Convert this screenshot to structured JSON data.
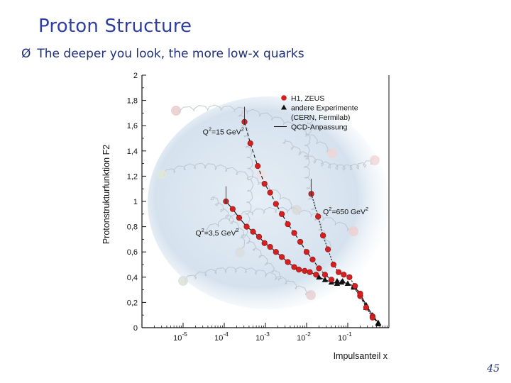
{
  "slide": {
    "title": "Proton Structure",
    "bullet_symbol": "Ø",
    "bullet_text": "The deeper you look, the more low-x quarks",
    "page_number": "45"
  },
  "chart_data": {
    "type": "scatter",
    "xlabel": "Impulsanteil x",
    "ylabel": "Protonstrukturfunktion F2",
    "x_scale": "log",
    "xlim": [
      1e-06,
      1
    ],
    "ylim": [
      0,
      2
    ],
    "x_ticks": [
      {
        "value": 1e-05,
        "base": "10",
        "exp": "-5"
      },
      {
        "value": 0.0001,
        "base": "10",
        "exp": "-4"
      },
      {
        "value": 0.001,
        "base": "10",
        "exp": "-3"
      },
      {
        "value": 0.01,
        "base": "10",
        "exp": "-2"
      },
      {
        "value": 0.1,
        "base": "10",
        "exp": "-1"
      }
    ],
    "y_ticks": [
      "0",
      "0,2",
      "0,4",
      "0,6",
      "0,8",
      "1",
      "1,2",
      "1,4",
      "1,6",
      "1,8",
      "2"
    ],
    "legend": [
      {
        "label": "H1, ZEUS",
        "marker": "circle",
        "color": "#d42020"
      },
      {
        "label": "andere Experimente",
        "marker": "triangle",
        "color": "#111111"
      },
      {
        "label": "(CERN, Fermilab)",
        "marker": "none",
        "color": "#111111"
      },
      {
        "label": "QCD-Anpassung",
        "marker": "line",
        "color": "#111111"
      }
    ],
    "annotations": [
      {
        "q2": "Q",
        "sup": "2",
        "rest": "=15 GeV",
        "unit_sup": "2",
        "x": 3e-05,
        "y": 1.53
      },
      {
        "q2": "Q",
        "sup": "2",
        "rest": "=3,5 GeV",
        "unit_sup": "2",
        "x": 2e-05,
        "y": 0.73
      },
      {
        "q2": "Q",
        "sup": "2",
        "rest": "=650 GeV",
        "unit_sup": "2",
        "x": 0.025,
        "y": 0.9
      }
    ],
    "series": [
      {
        "name": "Q2=3,5 GeV2",
        "color": "#d42020",
        "curve_style": "solid",
        "points": [
          {
            "x": 0.00011,
            "y": 1.0,
            "type": "circle"
          },
          {
            "x": 0.00016,
            "y": 0.94,
            "type": "circle"
          },
          {
            "x": 0.00023,
            "y": 0.87,
            "type": "circle"
          },
          {
            "x": 0.00035,
            "y": 0.8,
            "type": "circle"
          },
          {
            "x": 0.0005,
            "y": 0.76,
            "type": "circle"
          },
          {
            "x": 0.0007,
            "y": 0.72,
            "type": "circle"
          },
          {
            "x": 0.00095,
            "y": 0.67,
            "type": "circle"
          },
          {
            "x": 0.0013,
            "y": 0.64,
            "type": "circle"
          },
          {
            "x": 0.0018,
            "y": 0.6,
            "type": "circle"
          },
          {
            "x": 0.0025,
            "y": 0.56,
            "type": "circle"
          },
          {
            "x": 0.0035,
            "y": 0.52,
            "type": "circle"
          },
          {
            "x": 0.005,
            "y": 0.48,
            "type": "circle"
          },
          {
            "x": 0.0065,
            "y": 0.46,
            "type": "circle"
          },
          {
            "x": 0.009,
            "y": 0.45,
            "type": "circle"
          },
          {
            "x": 0.012,
            "y": 0.44,
            "type": "circle"
          },
          {
            "x": 0.017,
            "y": 0.42,
            "type": "circle"
          },
          {
            "x": 0.02,
            "y": 0.4,
            "type": "triangle"
          },
          {
            "x": 0.028,
            "y": 0.38,
            "type": "triangle"
          },
          {
            "x": 0.04,
            "y": 0.36,
            "type": "triangle"
          },
          {
            "x": 0.055,
            "y": 0.35,
            "type": "triangle"
          },
          {
            "x": 0.07,
            "y": 0.36,
            "type": "triangle"
          },
          {
            "x": 0.1,
            "y": 0.35,
            "type": "triangle"
          },
          {
            "x": 0.14,
            "y": 0.33,
            "type": "triangle"
          },
          {
            "x": 0.2,
            "y": 0.27,
            "type": "triangle"
          },
          {
            "x": 0.28,
            "y": 0.18,
            "type": "triangle"
          },
          {
            "x": 0.4,
            "y": 0.1,
            "type": "triangle"
          },
          {
            "x": 0.55,
            "y": 0.04,
            "type": "triangle"
          }
        ]
      },
      {
        "name": "Q2=15 GeV2",
        "color": "#d42020",
        "curve_style": "dashed",
        "points": [
          {
            "x": 0.00031,
            "y": 1.63,
            "type": "circle"
          },
          {
            "x": 0.00043,
            "y": 1.46,
            "type": "circle"
          },
          {
            "x": 0.00065,
            "y": 1.28,
            "type": "circle"
          },
          {
            "x": 0.00095,
            "y": 1.14,
            "type": "circle"
          },
          {
            "x": 0.0013,
            "y": 1.07,
            "type": "circle"
          },
          {
            "x": 0.0018,
            "y": 0.98,
            "type": "circle"
          },
          {
            "x": 0.0025,
            "y": 0.9,
            "type": "circle"
          },
          {
            "x": 0.0035,
            "y": 0.82,
            "type": "circle"
          },
          {
            "x": 0.005,
            "y": 0.75,
            "type": "circle"
          },
          {
            "x": 0.007,
            "y": 0.68,
            "type": "circle"
          },
          {
            "x": 0.01,
            "y": 0.6,
            "type": "circle"
          },
          {
            "x": 0.014,
            "y": 0.54,
            "type": "circle"
          },
          {
            "x": 0.02,
            "y": 0.47,
            "type": "circle"
          },
          {
            "x": 0.028,
            "y": 0.42,
            "type": "circle"
          },
          {
            "x": 0.04,
            "y": 0.38,
            "type": "circle"
          },
          {
            "x": 0.055,
            "y": 0.37,
            "type": "triangle"
          },
          {
            "x": 0.075,
            "y": 0.37,
            "type": "triangle"
          },
          {
            "x": 0.1,
            "y": 0.35,
            "type": "triangle"
          },
          {
            "x": 0.14,
            "y": 0.32,
            "type": "triangle"
          },
          {
            "x": 0.2,
            "y": 0.25,
            "type": "circle"
          },
          {
            "x": 0.28,
            "y": 0.16,
            "type": "triangle"
          },
          {
            "x": 0.4,
            "y": 0.09,
            "type": "circle"
          },
          {
            "x": 0.55,
            "y": 0.03,
            "type": "triangle"
          }
        ]
      },
      {
        "name": "Q2=650 GeV2",
        "color": "#d42020",
        "curve_style": "dotted",
        "points": [
          {
            "x": 0.013,
            "y": 1.06,
            "type": "circle"
          },
          {
            "x": 0.019,
            "y": 0.88,
            "type": "circle"
          },
          {
            "x": 0.025,
            "y": 0.73,
            "type": "circle"
          },
          {
            "x": 0.033,
            "y": 0.62,
            "type": "circle"
          },
          {
            "x": 0.045,
            "y": 0.5,
            "type": "circle"
          },
          {
            "x": 0.06,
            "y": 0.44,
            "type": "circle"
          },
          {
            "x": 0.08,
            "y": 0.42,
            "type": "circle"
          },
          {
            "x": 0.11,
            "y": 0.4,
            "type": "circle"
          },
          {
            "x": 0.15,
            "y": 0.33,
            "type": "circle"
          },
          {
            "x": 0.2,
            "y": 0.27,
            "type": "circle"
          },
          {
            "x": 0.28,
            "y": 0.16,
            "type": "circle"
          },
          {
            "x": 0.4,
            "y": 0.08,
            "type": "circle"
          }
        ]
      }
    ]
  }
}
